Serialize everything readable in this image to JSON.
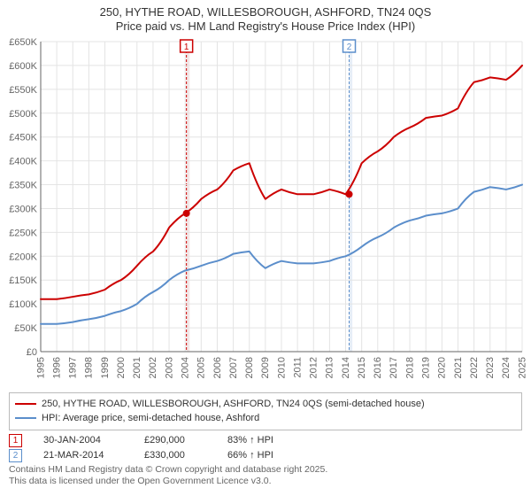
{
  "title_line1": "250, HYTHE ROAD, WILLESBOROUGH, ASHFORD, TN24 0QS",
  "title_line2": "Price paid vs. HM Land Registry's House Price Index (HPI)",
  "chart": {
    "type": "line",
    "background_color": "#ffffff",
    "grid_color": "#e4e4e4",
    "axis_color": "#666666",
    "x_years": [
      1995,
      1996,
      1997,
      1998,
      1999,
      2000,
      2001,
      2002,
      2003,
      2004,
      2005,
      2006,
      2007,
      2008,
      2009,
      2010,
      2011,
      2012,
      2013,
      2014,
      2015,
      2016,
      2017,
      2018,
      2019,
      2020,
      2021,
      2022,
      2023,
      2024,
      2025
    ],
    "ylim": [
      0,
      650000
    ],
    "ytick_step": 50000,
    "ytick_labels": [
      "£0",
      "£50K",
      "£100K",
      "£150K",
      "£200K",
      "£250K",
      "£300K",
      "£350K",
      "£400K",
      "£450K",
      "£500K",
      "£550K",
      "£600K",
      "£650K"
    ],
    "x_label_rotation": -90,
    "x_label_fontsize": 11,
    "y_label_fontsize": 11,
    "series": {
      "price_paid": {
        "color": "#cc0000",
        "width": 2,
        "values_at_years": [
          110000,
          110000,
          115000,
          120000,
          130000,
          150000,
          180000,
          210000,
          260000,
          290000,
          320000,
          340000,
          380000,
          395000,
          320000,
          340000,
          330000,
          330000,
          340000,
          330000,
          395000,
          420000,
          450000,
          470000,
          490000,
          495000,
          510000,
          565000,
          575000,
          570000,
          600000
        ]
      },
      "hpi": {
        "color": "#5b8ecb",
        "width": 2,
        "values_at_years": [
          58000,
          58000,
          62000,
          68000,
          75000,
          85000,
          100000,
          125000,
          150000,
          170000,
          180000,
          190000,
          205000,
          210000,
          175000,
          190000,
          185000,
          185000,
          190000,
          200000,
          220000,
          240000,
          260000,
          275000,
          285000,
          290000,
          300000,
          335000,
          345000,
          340000,
          350000
        ]
      }
    },
    "shaded_bands": [
      {
        "from_year": 2004.08,
        "to_year": 2004.28,
        "fill": "#f2e6e6",
        "border": "#cc0000"
      },
      {
        "from_year": 2014.22,
        "to_year": 2014.42,
        "fill": "#e6eef7",
        "border": "#5b8ecb"
      }
    ],
    "event_markers": [
      {
        "label": "1",
        "year": 2004.08,
        "border_color": "#cc0000",
        "text_color": "#cc0000"
      },
      {
        "label": "2",
        "year": 2014.22,
        "border_color": "#5b8ecb",
        "text_color": "#5b8ecb"
      }
    ],
    "event_dots": [
      {
        "year": 2004.08,
        "value": 290000,
        "color": "#cc0000"
      },
      {
        "year": 2014.22,
        "value": 330000,
        "color": "#cc0000"
      }
    ]
  },
  "legend": {
    "series1": {
      "color": "#cc0000",
      "label": "250, HYTHE ROAD, WILLESBOROUGH, ASHFORD, TN24 0QS (semi-detached house)"
    },
    "series2": {
      "color": "#5b8ecb",
      "label": "HPI: Average price, semi-detached house, Ashford"
    }
  },
  "events": [
    {
      "n": "1",
      "border_color": "#cc0000",
      "date": "30-JAN-2004",
      "price": "£290,000",
      "pct": "83% ↑ HPI"
    },
    {
      "n": "2",
      "border_color": "#5b8ecb",
      "date": "21-MAR-2014",
      "price": "£330,000",
      "pct": "66% ↑ HPI"
    }
  ],
  "footnote_line1": "Contains HM Land Registry data © Crown copyright and database right 2025.",
  "footnote_line2": "This data is licensed under the Open Government Licence v3.0."
}
